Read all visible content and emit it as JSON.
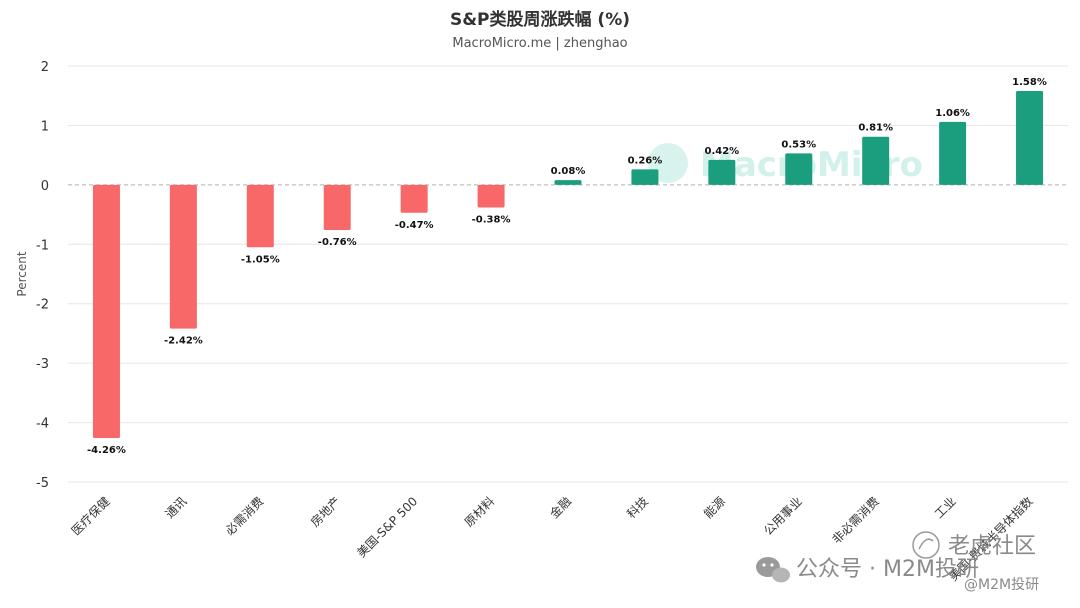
{
  "chart_data": {
    "type": "bar",
    "title": "S&P类股周涨跌幅 (%)",
    "subtitle": "MacroMicro.me | zhenghao",
    "ylabel": "Percent",
    "xlabel": "",
    "ylim": [
      -5,
      2
    ],
    "yticks": [
      2,
      1,
      0,
      -1,
      -2,
      -3,
      -4,
      -5
    ],
    "grid": true,
    "legend": "none",
    "categories": [
      "医疗保健",
      "通讯",
      "必需消费",
      "房地产",
      "美国-S&P 500",
      "原材料",
      "金融",
      "科技",
      "能源",
      "公用事业",
      "非必需消费",
      "工业",
      "美国-费城半导体指数"
    ],
    "values": [
      -4.26,
      -2.42,
      -1.05,
      -0.76,
      -0.47,
      -0.38,
      0.08,
      0.26,
      0.42,
      0.53,
      0.81,
      1.06,
      1.58
    ],
    "labels": [
      "-4.26%",
      "-2.42%",
      "-1.05%",
      "-0.76%",
      "-0.47%",
      "-0.38%",
      "0.08%",
      "0.26%",
      "0.42%",
      "0.53%",
      "0.81%",
      "1.06%",
      "1.58%"
    ],
    "colors": {
      "negative": "#f96868",
      "positive": "#1a9e7e"
    }
  },
  "watermark": {
    "brand": "MacroMicro"
  },
  "credits": {
    "wechat": "公众号 · M2M投研",
    "community": "老虎社区",
    "handle": "@M2M投研"
  }
}
